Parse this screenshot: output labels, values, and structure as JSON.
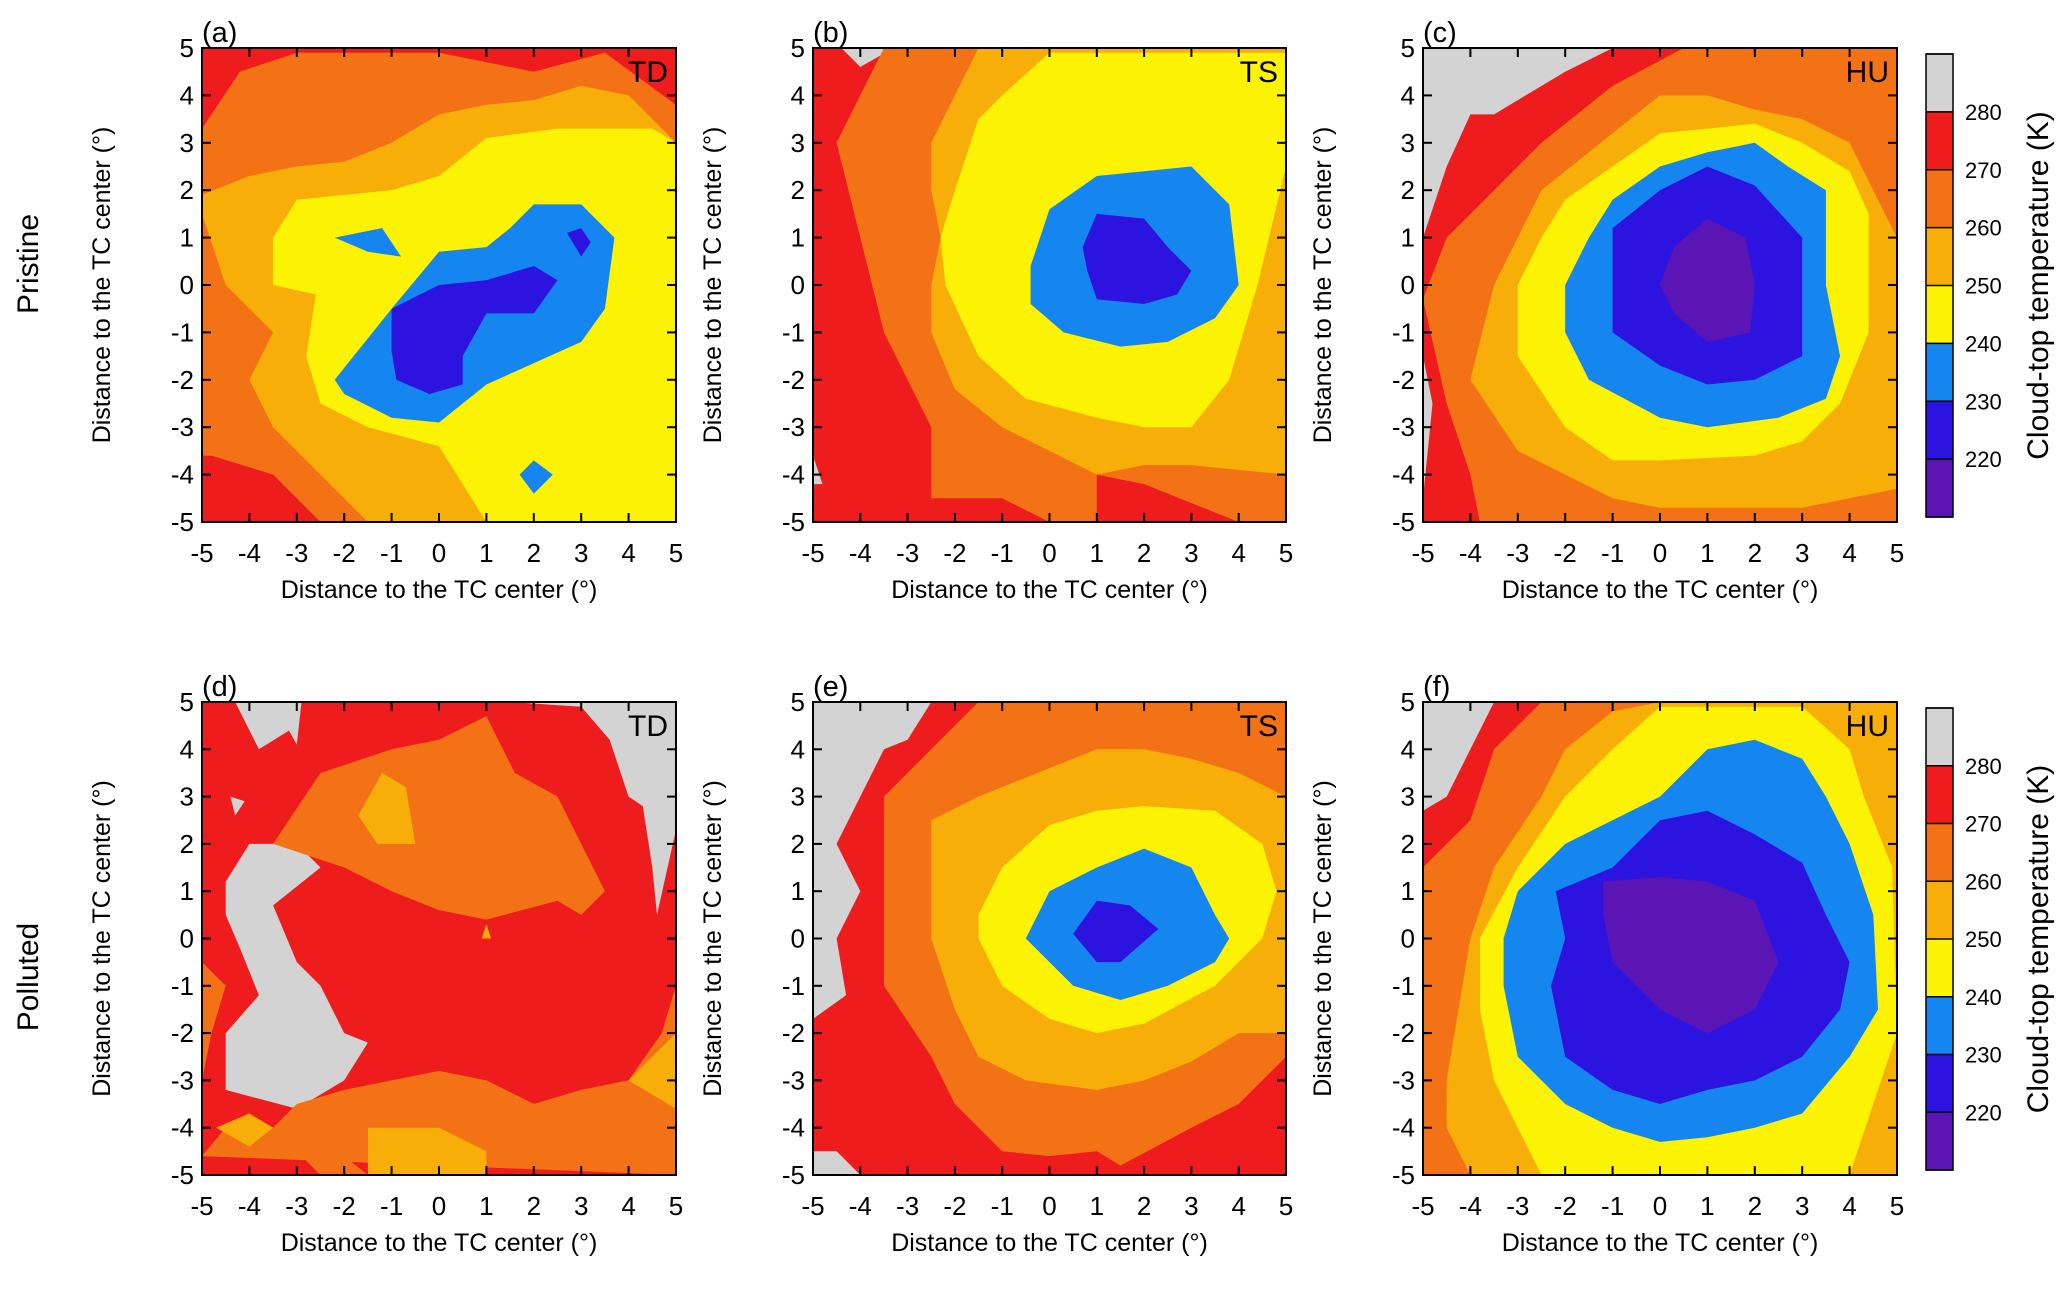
{
  "chart_data": {
    "type": "heatmap",
    "colorbar": {
      "label": "Cloud-top temperature (K)",
      "levels": [
        280,
        270,
        260,
        250,
        240,
        230,
        220
      ],
      "colors": {
        "above_280": "#d3d3d3",
        "270_280": "#ee1c1c",
        "260_270": "#f47216",
        "250_260": "#f8ae09",
        "240_250": "#fcf203",
        "230_240": "#1585f0",
        "220_230": "#2d13e0",
        "below_220": "#5b15b4"
      }
    },
    "rows": [
      {
        "label": "Pristine"
      },
      {
        "label": "Polluted"
      }
    ],
    "axes": {
      "xlabel": "Distance to the TC center (°)",
      "ylabel": "Distance to the TC center (°)",
      "xlim": [
        -5,
        5
      ],
      "ylim": [
        -5,
        5
      ],
      "ticks": [
        "-5",
        "-4",
        "-3",
        "-2",
        "-1",
        "0",
        "1",
        "2",
        "3",
        "4",
        "5"
      ]
    },
    "panels": [
      {
        "id": "(a)",
        "tag": "TD",
        "row": "Pristine",
        "cold_core_center": [
          0.5,
          -1
        ],
        "min_temperature_band": "220-230"
      },
      {
        "id": "(b)",
        "tag": "TS",
        "row": "Pristine",
        "cold_core_center": [
          1.5,
          0.5
        ],
        "min_temperature_band": "220-230"
      },
      {
        "id": "(c)",
        "tag": "HU",
        "row": "Pristine",
        "cold_core_center": [
          1,
          0
        ],
        "min_temperature_band": "<220"
      },
      {
        "id": "(d)",
        "tag": "TD",
        "row": "Polluted",
        "cold_core_center": [
          0,
          2.5
        ],
        "min_temperature_band": "250-260"
      },
      {
        "id": "(e)",
        "tag": "TS",
        "row": "Polluted",
        "cold_core_center": [
          1.5,
          0
        ],
        "min_temperature_band": "220-230"
      },
      {
        "id": "(f)",
        "tag": "HU",
        "row": "Polluted",
        "cold_core_center": [
          0.5,
          -0.5
        ],
        "min_temperature_band": "<220"
      }
    ]
  }
}
